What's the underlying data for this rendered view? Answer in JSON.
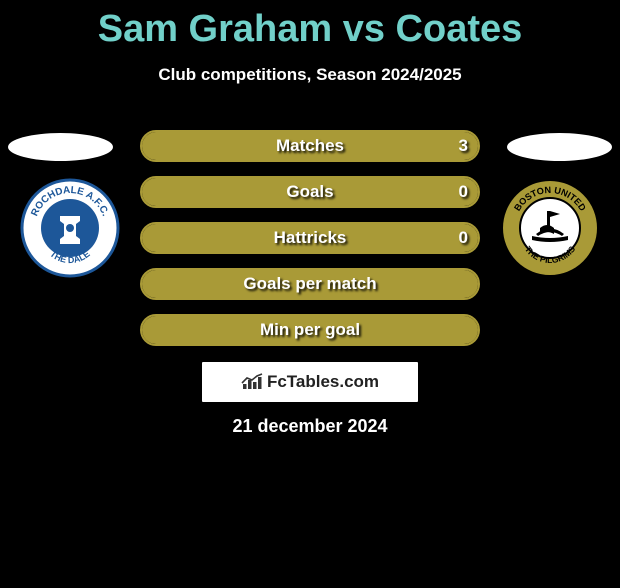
{
  "title": "Sam Graham vs Coates",
  "subtitle": "Club competitions, Season 2024/2025",
  "accent_color": "#71d0c9",
  "bars": {
    "border_color": "#a99a37",
    "fill_color": "#a99a37",
    "items": [
      {
        "label": "Matches",
        "left": "",
        "right": "3",
        "left_pct": 0,
        "right_pct": 100
      },
      {
        "label": "Goals",
        "left": "",
        "right": "0",
        "left_pct": 0,
        "right_pct": 100
      },
      {
        "label": "Hattricks",
        "left": "",
        "right": "0",
        "left_pct": 0,
        "right_pct": 100
      },
      {
        "label": "Goals per match",
        "left": "",
        "right": "",
        "left_pct": 0,
        "right_pct": 100
      },
      {
        "label": "Min per goal",
        "left": "",
        "right": "",
        "left_pct": 0,
        "right_pct": 100
      }
    ]
  },
  "brand": "FcTables.com",
  "date": "21 december 2024",
  "crest_left": {
    "outer": "#1d5799",
    "inner": "#ffffff",
    "text_top": "ROCHDALE A.F.C.",
    "text_bottom": "THE DALE"
  },
  "crest_right": {
    "outer": "#a99a37",
    "inner": "#ffffff",
    "ring": "#000000",
    "text_top": "BOSTON UNITED",
    "text_bottom": "THE PILGRIMS"
  }
}
